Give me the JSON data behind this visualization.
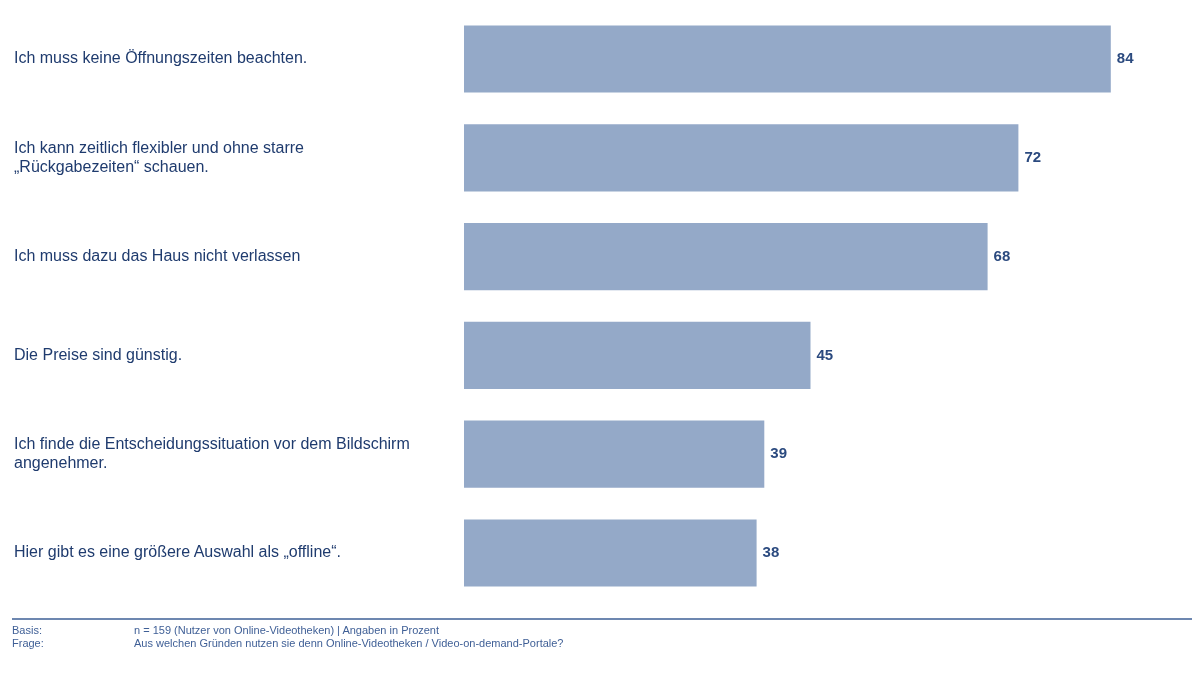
{
  "chart_data": {
    "type": "bar",
    "orientation": "horizontal",
    "categories": [
      "Ich muss keine Öffnungszeiten beachten.",
      "Ich kann zeitlich flexibler und ohne starre „Rückgabezeiten“ schauen.",
      "Ich muss dazu das Haus nicht verlassen",
      "Die Preise sind günstig.",
      "Ich finde die Entscheidungssituation vor dem Bildschirm angenehmer.",
      "Hier gibt es eine größere Auswahl als „offline“."
    ],
    "values": [
      84,
      72,
      68,
      45,
      39,
      38
    ],
    "color": "#94a9c8",
    "data_labels": true,
    "grid": false,
    "legend": false,
    "annotations": [
      "Basis: n = 159 (Nutzer von Online-Videotheken) | Angaben in Prozent",
      "Frage: Aus welchen Gründen nutzen sie denn Online-Videotheken / Video-on-demand-Portale?"
    ]
  }
}
